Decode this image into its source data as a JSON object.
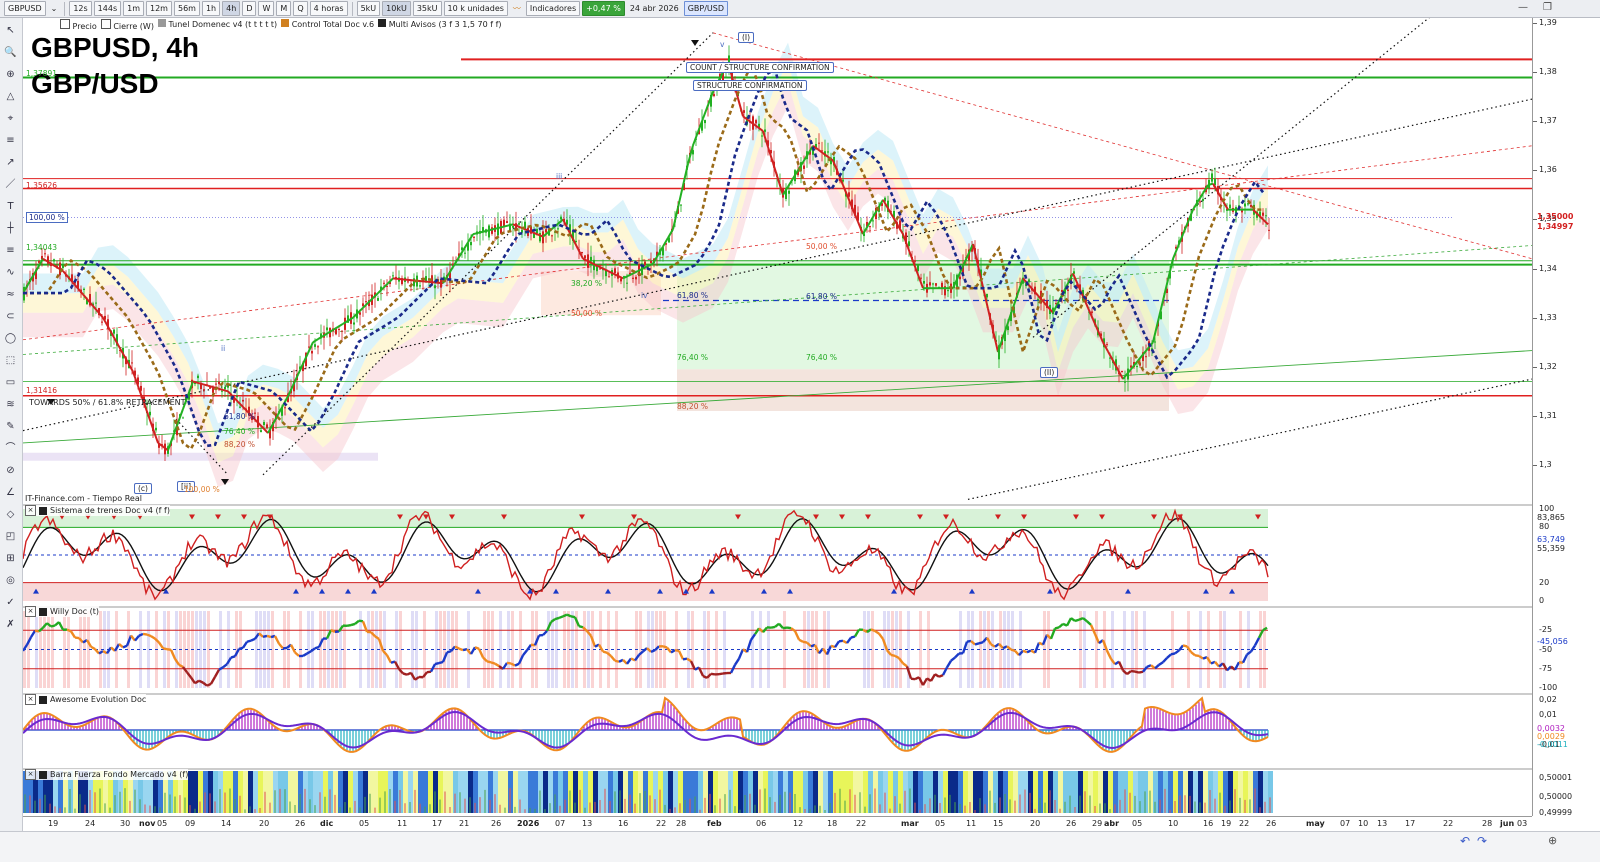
{
  "toolbar": {
    "symbol": "GBPUSD",
    "timeframes": [
      "12s",
      "144s",
      "1m",
      "12m",
      "56m",
      "1h",
      "4h",
      "D",
      "W",
      "M",
      "Q"
    ],
    "active_timeframe": "4h",
    "period": "4 horas",
    "ticks": [
      "5kU",
      "10kU",
      "35kU"
    ],
    "active_tick": "10kU",
    "units": "10 k unidades",
    "indicators": "Indicadores",
    "change": "+0,47 %",
    "date": "24 abr 2026",
    "pair": "GBP/USD",
    "checks": [
      "Precio",
      "Cierre (W)",
      "Tunel Domenec v4 (t t t t t)",
      "Control Total Doc v.6",
      "Multi Avisos (3 f 3 1,5 70 f f)"
    ]
  },
  "title": {
    "line1": "GBPUSD, 4h",
    "line2": "GBP/USD"
  },
  "panes": [
    {
      "title": "Sistema de trenes Doc v4 (f f)"
    },
    {
      "title": "Willy Doc (t)"
    },
    {
      "title": "Awesome Evolution Doc"
    },
    {
      "title": "Barra Fuerza Fondo Mercado v4 (f)"
    }
  ],
  "annotations": {
    "count_confirm": "COUNT / STRUCTURE CONFIRMATION",
    "structure_confirm": "STRUCTURE CONFIRMATION",
    "towards": "TOWARDS 50% / 61.8% RETRACEMENT",
    "realtime": "IT-Finance.com - Tiempo Real",
    "wave_i": "(I)",
    "wave_ii": "(II)",
    "wave_c": "(c)",
    "wave_iii_small": "[ii]",
    "wave_iii": "iii",
    "wave_iv": "iv",
    "wave_ii_small": "ii",
    "wave_v": "v",
    "pct_100": "100,00 %",
    "pct_618a": "61,80 %",
    "pct_764a": "76,40 %",
    "pct_882a": "88,20 %",
    "pct_1000": "100,00 %",
    "pct_382": "38,20 %",
    "pct_500a": "50,00 %",
    "pct_500b": "50,00 %",
    "pct_618b": "61,80 %",
    "pct_618c": "61,80 %",
    "pct_764b": "76,40 %",
    "pct_764c": "76,40 %",
    "pct_882b": "88,20 %",
    "lvl_37891": "1,37891",
    "lvl_35626": "1,35626",
    "lvl_34043": "1,34043",
    "lvl_31416": "1,31416"
  },
  "price_axis": {
    "ticks": [
      "1,39",
      "1,38",
      "1,37",
      "1,36",
      "1,35",
      "1,34",
      "1,33",
      "1,32",
      "1,31",
      "1,3"
    ],
    "tags": [
      {
        "text": "1,35000",
        "color": "#d32020"
      },
      {
        "text": "1,34997",
        "color": "#d32020"
      }
    ]
  },
  "osc1_axis": {
    "ticks": [
      "100",
      "80",
      "20",
      "0"
    ],
    "tags": [
      "83,865",
      "63,749",
      "55,359"
    ]
  },
  "osc2_axis": {
    "ticks": [
      "-25",
      "-50",
      "-75",
      "-100"
    ],
    "tags": [
      "-45,056"
    ]
  },
  "osc3_axis": {
    "ticks": [
      "0,02",
      "0,01",
      "-0,01"
    ],
    "tags": [
      "0,0032",
      "0,0029",
      "-0,0011"
    ]
  },
  "osc4_axis": {
    "ticks": [
      "0,50001",
      "0,50000",
      "0,49999"
    ]
  },
  "time_axis": [
    "19",
    "24",
    "30",
    "nov",
    "05",
    "09",
    "14",
    "20",
    "26",
    "dic",
    "05",
    "11",
    "17",
    "21",
    "26",
    "2026",
    "07",
    "13",
    "16",
    "22",
    "28",
    "feb",
    "06",
    "12",
    "18",
    "22",
    "mar",
    "05",
    "11",
    "15",
    "20",
    "26",
    "29",
    "abr",
    "05",
    "10",
    "16",
    "19",
    "22",
    "26",
    "may",
    "07",
    "10",
    "13",
    "17",
    "22",
    "28",
    "jun",
    "03"
  ],
  "colors": {
    "up": "#22b022",
    "down": "#d02020",
    "trend": "#1a2a8a",
    "brown": "#9a6a18",
    "red_level": "#e02020",
    "green_level": "#22aa22"
  }
}
